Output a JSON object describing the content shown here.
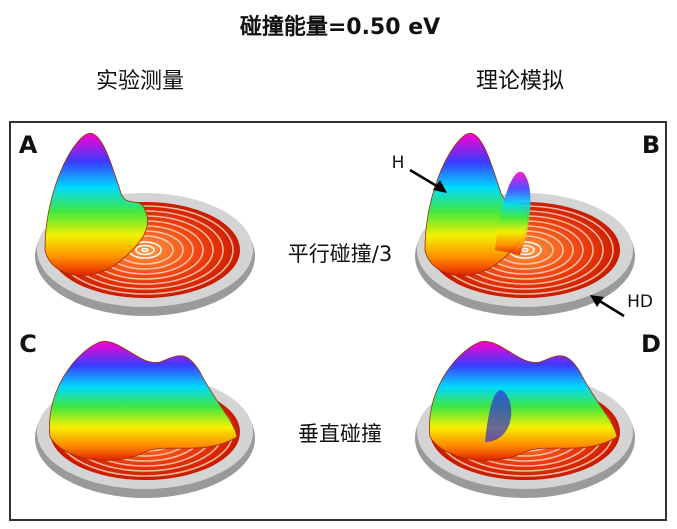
{
  "title": "碰撞能量=0.50 eV",
  "columns": [
    "实验测量",
    "理论模拟"
  ],
  "panels": [
    "A",
    "B",
    "C",
    "D"
  ],
  "rows": [
    "平行碰撞/3",
    "垂直碰撞"
  ],
  "annotations": [
    "H",
    "HD"
  ]
}
